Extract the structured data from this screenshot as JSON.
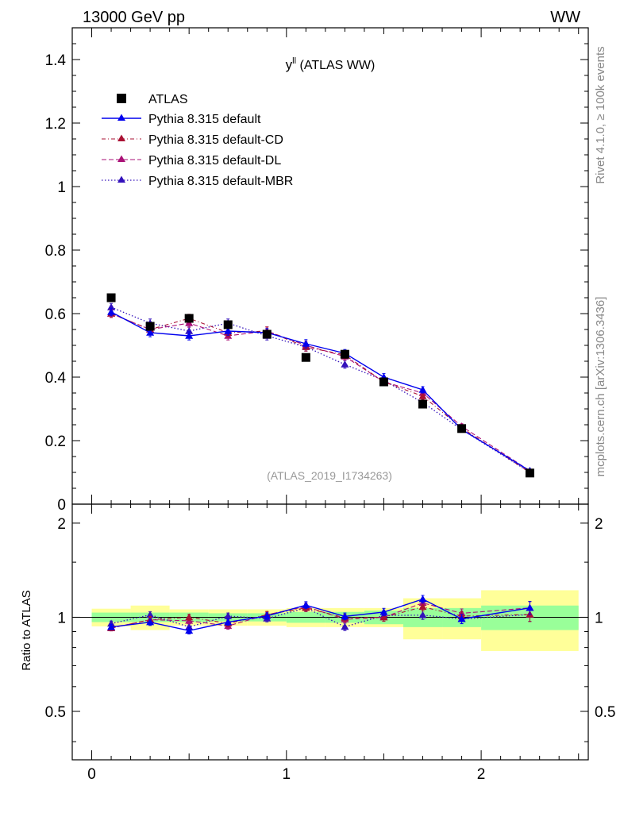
{
  "header": {
    "left": "13000 GeV pp",
    "right": "WW"
  },
  "side_labels": {
    "rivet": "Rivet 4.1.0, ≥ 100k events",
    "mcplots": "mcplots.cern.ch [arXiv:1306.3436]"
  },
  "ratio_ylabel": "Ratio to ATLAS",
  "chart_data": {
    "type": "scatter",
    "title_main": "y",
    "title_sup": "ll",
    "title_rest": " (ATLAS WW)",
    "analysis_tag": "(ATLAS_2019_I1734263)",
    "main_panel": {
      "ylim": [
        0,
        1.5
      ],
      "yticks": [
        0,
        0.2,
        0.4,
        0.6,
        0.8,
        1,
        1.2,
        1.4
      ],
      "ytick_labels": [
        "0",
        "0.2",
        "0.4",
        "0.6",
        "0.8",
        "1",
        "1.2",
        "1.4"
      ]
    },
    "ratio_panel": {
      "ylim": [
        0.35,
        2.3
      ],
      "yticks": [
        0.5,
        1,
        2
      ],
      "ytick_labels": [
        "0.5",
        "1",
        "2"
      ]
    },
    "xlim": [
      -0.1,
      2.55
    ],
    "xticks": [
      0,
      1,
      2
    ],
    "xtick_labels": [
      "0",
      "1",
      "2"
    ],
    "bin_edges": [
      0,
      0.2,
      0.4,
      0.6,
      0.8,
      1.0,
      1.2,
      1.4,
      1.6,
      1.8,
      2.0,
      2.5
    ],
    "x": [
      0.1,
      0.3,
      0.5,
      0.7,
      0.9,
      1.1,
      1.3,
      1.5,
      1.7,
      1.9,
      2.25
    ],
    "data": {
      "name": "ATLAS",
      "color": "#000000",
      "values": [
        0.65,
        0.56,
        0.585,
        0.565,
        0.535,
        0.462,
        0.472,
        0.385,
        0.315,
        0.238,
        0.098
      ]
    },
    "band_stat_rel": [
      0.035,
      0.035,
      0.035,
      0.03,
      0.03,
      0.04,
      0.04,
      0.05,
      0.07,
      0.07,
      0.09
    ],
    "band_total_rel": [
      0.065,
      0.09,
      0.06,
      0.06,
      0.06,
      0.07,
      0.07,
      0.07,
      0.15,
      0.15,
      0.22
    ],
    "series": [
      {
        "name": "Pythia 8.315 default",
        "color": "#0000ee",
        "dash": "none",
        "width": 1.4,
        "values": [
          0.605,
          0.54,
          0.53,
          0.545,
          0.54,
          0.505,
          0.475,
          0.4,
          0.36,
          0.235,
          0.105
        ],
        "err": [
          0.012,
          0.013,
          0.013,
          0.013,
          0.013,
          0.013,
          0.012,
          0.011,
          0.01,
          0.008,
          0.005
        ]
      },
      {
        "name": "Pythia 8.315 default-CD",
        "color": "#aa1133",
        "dash": "5,3,1,3",
        "width": 1.1,
        "values": [
          0.6,
          0.55,
          0.585,
          0.54,
          0.545,
          0.495,
          0.47,
          0.385,
          0.34,
          0.24,
          0.1
        ],
        "err": [
          0.012,
          0.013,
          0.013,
          0.013,
          0.013,
          0.013,
          0.012,
          0.011,
          0.01,
          0.008,
          0.005
        ]
      },
      {
        "name": "Pythia 8.315 default-DL",
        "color": "#aa1177",
        "dash": "6,3",
        "width": 1.1,
        "values": [
          0.6,
          0.55,
          0.57,
          0.53,
          0.545,
          0.5,
          0.465,
          0.385,
          0.35,
          0.245,
          0.105
        ],
        "err": [
          0.012,
          0.013,
          0.013,
          0.013,
          0.013,
          0.013,
          0.012,
          0.011,
          0.01,
          0.008,
          0.005
        ]
      },
      {
        "name": "Pythia 8.315 default-MBR",
        "color": "#3311bb",
        "dash": "1.5,2.5",
        "width": 1.3,
        "values": [
          0.62,
          0.57,
          0.545,
          0.57,
          0.53,
          0.495,
          0.44,
          0.39,
          0.32,
          0.235,
          0.1
        ],
        "err": [
          0.012,
          0.013,
          0.013,
          0.013,
          0.013,
          0.013,
          0.012,
          0.011,
          0.01,
          0.008,
          0.005
        ]
      }
    ]
  }
}
